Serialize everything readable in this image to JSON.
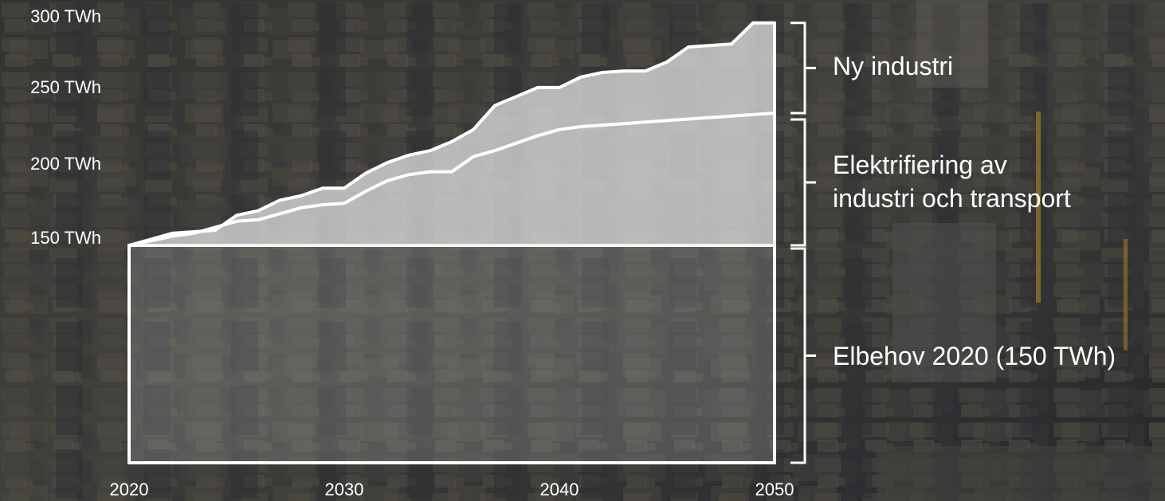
{
  "colors": {
    "line": "#ffffff",
    "base_fill": "rgba(200,200,200,0.22)",
    "growth_fill": "rgba(232,232,232,0.72)",
    "text": "#ffffff"
  },
  "chart_data": {
    "type": "area",
    "xlim": [
      2020,
      2050
    ],
    "ylim": [
      150,
      300
    ],
    "x_ticks": [
      "2020",
      "2030",
      "2040",
      "2050"
    ],
    "y_ticks": [
      "150 TWh",
      "200 TWh",
      "250 TWh",
      "300 TWh"
    ],
    "base": {
      "label": "Elbehov 2020 (150 TWh)",
      "value": 150
    },
    "series": [
      {
        "name": "Elektrifiering av industri och transport",
        "x": [
          2020,
          2021,
          2022,
          2023,
          2024,
          2025,
          2026,
          2027,
          2028,
          2029,
          2030,
          2031,
          2032,
          2033,
          2034,
          2035,
          2036,
          2037,
          2038,
          2039,
          2040,
          2041,
          2042,
          2043,
          2044,
          2045,
          2046,
          2047,
          2048,
          2049,
          2050
        ],
        "y": [
          150,
          153,
          156,
          158,
          162,
          166,
          167,
          171,
          175,
          177,
          178,
          186,
          193,
          197,
          199,
          199,
          209,
          213,
          218,
          223,
          227,
          229,
          230,
          231,
          232,
          233,
          234,
          235,
          236,
          237,
          238
        ]
      },
      {
        "name": "Ny industri",
        "x": [
          2020,
          2021,
          2022,
          2023,
          2024,
          2025,
          2026,
          2027,
          2028,
          2029,
          2030,
          2031,
          2032,
          2033,
          2034,
          2035,
          2036,
          2037,
          2038,
          2039,
          2040,
          2041,
          2042,
          2043,
          2044,
          2045,
          2046,
          2047,
          2048,
          2049,
          2050
        ],
        "y": [
          150,
          154,
          158,
          159,
          160,
          170,
          173,
          180,
          183,
          188,
          188,
          198,
          205,
          210,
          213,
          219,
          227,
          243,
          249,
          255,
          255,
          262,
          265,
          266,
          266,
          272,
          282,
          283,
          284,
          298,
          298
        ]
      }
    ],
    "brackets": [
      {
        "label": "Ny industri",
        "from": 238,
        "to": 298
      },
      {
        "label_lines": [
          "Elektrifiering av",
          "industri och transport"
        ],
        "from": 150,
        "to": 238
      },
      {
        "label": "Elbehov 2020 (150 TWh)",
        "from": 0,
        "to": 150
      }
    ]
  }
}
